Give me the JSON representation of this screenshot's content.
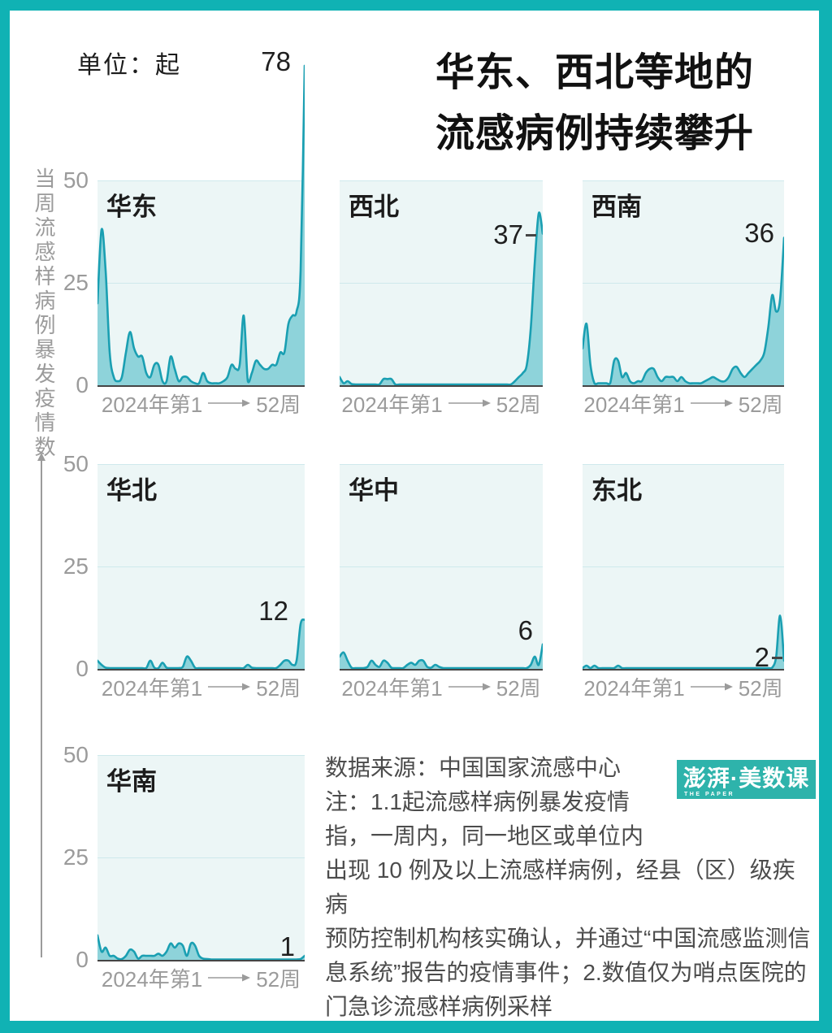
{
  "colors": {
    "frame_teal": "#10b2b4",
    "logo_teal": "#2eb3ab",
    "plot_background": "#ecf6f6",
    "gridline": "#cfe9ec",
    "area_fill": "#8ed3da",
    "line_stroke": "#1a9fb2",
    "axis_line": "#454545",
    "muted_text": "#9b9b9b",
    "note_text": "#4c4c4c",
    "heading_text": "#111111"
  },
  "header": {
    "unit_label": "单位：起",
    "title_line1": "华东、西北等地的",
    "title_line2": "流感病例持续攀升"
  },
  "chart_data": {
    "type": "area",
    "unit_label": "单位：起",
    "y_axis_label": "当周流感样病例暴发疫情数",
    "ylim": [
      0,
      50
    ],
    "y_ticks": [
      50,
      25,
      0
    ],
    "grid": "horizontal gridlines at 25 and 50",
    "x_axis": {
      "start_label": "2024年第1",
      "end_label": "52周",
      "range": [
        1,
        52
      ]
    },
    "charts": [
      {
        "title": "华东",
        "peak_label": "78",
        "values": [
          20,
          38,
          28,
          8,
          2,
          1,
          2,
          8,
          13,
          9,
          7,
          7,
          3,
          2,
          5,
          5,
          1,
          1,
          7,
          4,
          1,
          2,
          2,
          1,
          0.5,
          0.5,
          3,
          1,
          0.5,
          0.5,
          0.5,
          1,
          2,
          5,
          4,
          5,
          17,
          1,
          3,
          6,
          5,
          4,
          4,
          5,
          5,
          8,
          8,
          15,
          17,
          18,
          28,
          78
        ]
      },
      {
        "title": "西北",
        "peak_label": "37",
        "values": [
          2,
          0.5,
          1,
          0.3,
          0.2,
          0.2,
          0.2,
          0.2,
          0.2,
          0.2,
          0.2,
          1.5,
          1.5,
          1.5,
          0.2,
          0.2,
          0.2,
          0.2,
          0.2,
          0.2,
          0.2,
          0.2,
          0.2,
          0.2,
          0.2,
          0.2,
          0.2,
          0.2,
          0.2,
          0.2,
          0.2,
          0.2,
          0.2,
          0.2,
          0.2,
          0.2,
          0.2,
          0.2,
          0.2,
          0.2,
          0.2,
          0.2,
          0.2,
          0.2,
          1,
          2,
          3,
          5,
          14,
          30,
          42,
          37
        ]
      },
      {
        "title": "西南",
        "peak_label": "36",
        "values": [
          9,
          15,
          5,
          0.5,
          0.5,
          0.5,
          0.5,
          0.5,
          6,
          6,
          2,
          3,
          1,
          0.5,
          1,
          1,
          3,
          4,
          4,
          2,
          1,
          2,
          2,
          2,
          1,
          2,
          1,
          0.5,
          0.5,
          0.5,
          0.5,
          1,
          1.5,
          2,
          1.5,
          1,
          1,
          2,
          4,
          4.5,
          3,
          2,
          3,
          4,
          5,
          6,
          8,
          14,
          22,
          18,
          21,
          36
        ]
      },
      {
        "title": "华北",
        "peak_label": "12",
        "values": [
          2,
          1,
          0.3,
          0.2,
          0.2,
          0.2,
          0.2,
          0.2,
          0.2,
          0.2,
          0.2,
          0.2,
          0.2,
          2,
          0.3,
          0.2,
          1.5,
          0.3,
          0.2,
          0.2,
          0.2,
          0.5,
          3,
          2,
          0.3,
          0.2,
          0.2,
          0.2,
          0.2,
          0.2,
          0.2,
          0.2,
          0.2,
          0.2,
          0.2,
          0.2,
          0.2,
          1,
          0.3,
          0.2,
          0.2,
          0.2,
          0.2,
          0.2,
          0.2,
          1,
          2,
          2,
          1,
          2,
          11,
          12
        ]
      },
      {
        "title": "华中",
        "peak_label": "6",
        "values": [
          3,
          4,
          2,
          0.3,
          0.2,
          0.2,
          0.2,
          0.5,
          2,
          1,
          0.5,
          2,
          1.5,
          0.3,
          0.2,
          0.2,
          0.2,
          1,
          1.5,
          1,
          2,
          2,
          0.5,
          0.3,
          1,
          0.5,
          0.2,
          0.2,
          0.2,
          0.2,
          0.2,
          0.2,
          0.2,
          0.2,
          0.2,
          0.2,
          0.2,
          0.2,
          0.2,
          0.2,
          0.2,
          0.2,
          0.2,
          0.2,
          0.2,
          0.2,
          0.2,
          0.2,
          1,
          3,
          1,
          6
        ]
      },
      {
        "title": "东北",
        "peak_label": "2",
        "values": [
          0.2,
          0.8,
          0.2,
          0.8,
          0.2,
          0.2,
          0.2,
          0.2,
          0.2,
          0.8,
          0.2,
          0.2,
          0.2,
          0.2,
          0.2,
          0.2,
          0.2,
          0.2,
          0.2,
          0.2,
          0.2,
          0.2,
          0.2,
          0.2,
          0.2,
          0.2,
          0.2,
          0.2,
          0.2,
          0.2,
          0.2,
          0.2,
          0.2,
          0.2,
          0.2,
          0.2,
          0.2,
          0.2,
          0.2,
          0.2,
          0.2,
          0.2,
          0.2,
          0.2,
          0.2,
          0.2,
          0.2,
          0.2,
          0.3,
          3,
          13,
          2
        ]
      },
      {
        "title": "华南",
        "peak_label": "1",
        "values": [
          6,
          2,
          3,
          1,
          1,
          0.3,
          0.2,
          1,
          2.5,
          2,
          0.3,
          1,
          1,
          1,
          1,
          1.5,
          1,
          2,
          4,
          3,
          4,
          3.5,
          1,
          4,
          3.5,
          1,
          0.3,
          0.2,
          0.1,
          0.1,
          0.1,
          0.1,
          0.1,
          0.1,
          0.1,
          0.1,
          0.1,
          0.1,
          0.1,
          0.1,
          0.1,
          0.1,
          0.1,
          0.1,
          0.1,
          0.1,
          0.1,
          0.1,
          0.1,
          0.1,
          0.2,
          1
        ]
      }
    ]
  },
  "footer": {
    "lines": [
      "数据来源：中国国家流感中心",
      "注：1.1起流感样病例暴发疫情",
      "指，一周内，同一地区或单位内",
      "出现 10 例及以上流感样病例，经县（区）级疾病",
      "预防控制机构核实确认，并通过“中国流感监测信",
      "息系统”报告的疫情事件；2.数值仅为哨点医院的",
      "门急诊流感样病例采样"
    ]
  },
  "logo": {
    "main": "澎湃·美数课",
    "sub": "THE PAPER"
  }
}
